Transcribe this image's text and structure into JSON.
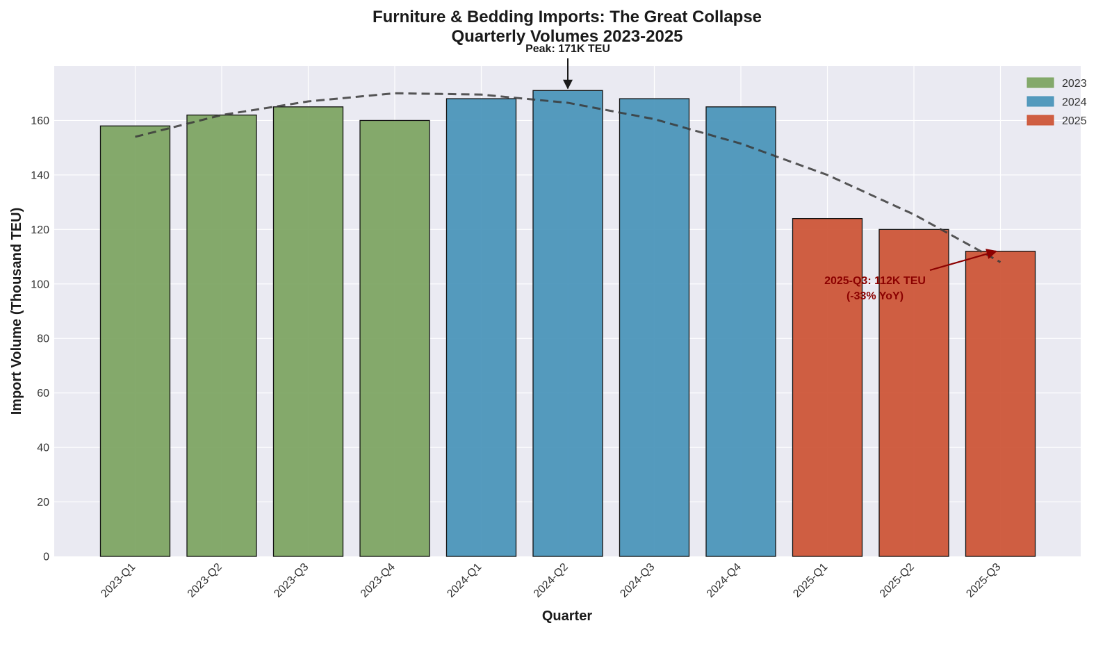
{
  "chart_data": {
    "type": "bar",
    "title_line1": "Furniture & Bedding Imports: The Great Collapse",
    "title_line2": "Quarterly Volumes 2023-2025",
    "xlabel": "Quarter",
    "ylabel": "Import Volume (Thousand TEU)",
    "ylim": [
      0,
      180
    ],
    "yticks": [
      0,
      20,
      40,
      60,
      80,
      100,
      120,
      140,
      160
    ],
    "grid": true,
    "legend_position": "top-right",
    "categories": [
      "2023-Q1",
      "2023-Q2",
      "2023-Q3",
      "2023-Q4",
      "2024-Q1",
      "2024-Q2",
      "2024-Q3",
      "2024-Q4",
      "2025-Q1",
      "2025-Q2",
      "2025-Q3"
    ],
    "values": [
      158,
      162,
      165,
      160,
      168,
      171,
      168,
      165,
      124,
      120,
      112
    ],
    "groups": [
      "2023",
      "2023",
      "2023",
      "2023",
      "2024",
      "2024",
      "2024",
      "2024",
      "2025",
      "2025",
      "2025"
    ],
    "legend": [
      {
        "label": "2023",
        "color": "#7ba35f"
      },
      {
        "label": "2024",
        "color": "#4693b8"
      },
      {
        "label": "2025",
        "color": "#cc5133"
      }
    ],
    "trend_line": {
      "style": "dashed",
      "color": "#3a3a3a",
      "values": [
        154,
        162,
        167,
        170,
        169.5,
        166.5,
        160.5,
        151.5,
        140,
        125.5,
        108
      ]
    },
    "annotations": [
      {
        "id": "peak",
        "text": "Peak: 171K TEU",
        "target_index": 5,
        "target_value": 171,
        "color": "#1a1a1a"
      },
      {
        "id": "latest",
        "line1": "2025-Q3: 112K TEU",
        "line2": "(-33% YoY)",
        "target_index": 10,
        "target_value": 112,
        "color": "#8b0000"
      }
    ]
  }
}
